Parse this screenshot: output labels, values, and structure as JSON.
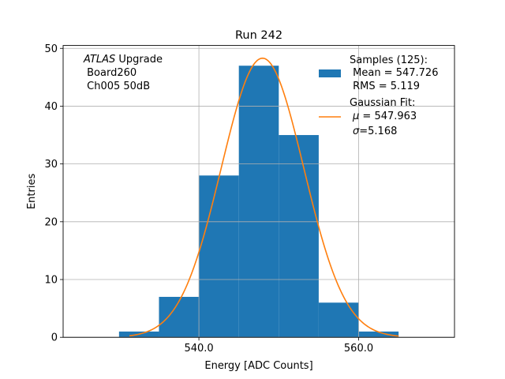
{
  "chart_data": {
    "type": "bar",
    "title": "Run 242",
    "xlabel": "Energy [ADC Counts]",
    "ylabel": "Entries",
    "xlim": [
      523,
      572
    ],
    "ylim": [
      0,
      50.5
    ],
    "grid": true,
    "x_ticks": [
      540.0,
      560.0
    ],
    "x_tick_labels": [
      "540.0",
      "560.0"
    ],
    "y_ticks": [
      0,
      10,
      20,
      30,
      40,
      50
    ],
    "y_tick_labels": [
      "0",
      "10",
      "20",
      "30",
      "40",
      "50"
    ],
    "bins": [
      {
        "x0": 530,
        "x1": 535,
        "count": 1
      },
      {
        "x0": 535,
        "x1": 540,
        "count": 7
      },
      {
        "x0": 540,
        "x1": 545,
        "count": 28
      },
      {
        "x0": 545,
        "x1": 550,
        "count": 47
      },
      {
        "x0": 550,
        "x1": 555,
        "count": 35
      },
      {
        "x0": 555,
        "x1": 560,
        "count": 6
      },
      {
        "x0": 560,
        "x1": 565,
        "count": 1
      }
    ],
    "fit": {
      "mu": 547.963,
      "sigma": 5.168,
      "amplitude": 48.3,
      "x_range": [
        531.3,
        565.0
      ]
    },
    "annotation": {
      "experiment": "ATLAS",
      "line1_rest": " Upgrade",
      "line2": " Board260",
      "line3": " Ch005 50dB"
    },
    "legend": {
      "position": "top-right",
      "hist_lines": [
        "Samples (125):",
        " Mean = 547.726",
        " RMS = 5.119"
      ],
      "fit_line1": "Gaussian Fit:",
      "fit_mu_symbol": "μ",
      "fit_mu_rest": " = 547.963",
      "fit_sigma_symbol": "σ",
      "fit_sigma_rest": "=5.168"
    },
    "colors": {
      "bars": "#1f77b4",
      "fit": "#ff7f0e",
      "grid": "#b0b0b0"
    }
  }
}
